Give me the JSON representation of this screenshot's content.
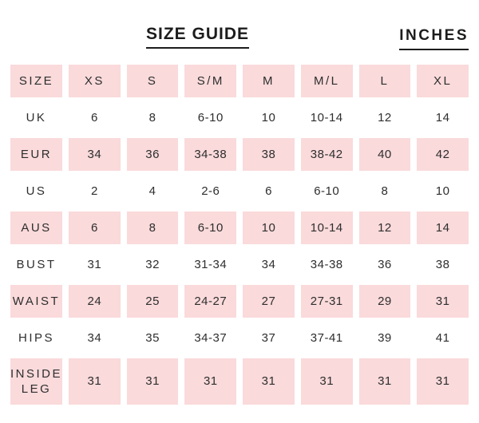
{
  "page": {
    "title": "SIZE GUIDE",
    "unit_label": "INCHES"
  },
  "colors": {
    "row_pink": "#fadadb",
    "text": "#2e2e2e",
    "heading": "#1c1c1c"
  },
  "table": {
    "header": [
      "SIZE",
      "XS",
      "S",
      "S/M",
      "M",
      "M/L",
      "L",
      "XL"
    ],
    "rows": [
      {
        "label": "UK",
        "values": [
          "6",
          "8",
          "6-10",
          "10",
          "10-14",
          "12",
          "14"
        ]
      },
      {
        "label": "EUR",
        "values": [
          "34",
          "36",
          "34-38",
          "38",
          "38-42",
          "40",
          "42"
        ]
      },
      {
        "label": "US",
        "values": [
          "2",
          "4",
          "2-6",
          "6",
          "6-10",
          "8",
          "10"
        ]
      },
      {
        "label": "AUS",
        "values": [
          "6",
          "8",
          "6-10",
          "10",
          "10-14",
          "12",
          "14"
        ]
      },
      {
        "label": "BUST",
        "values": [
          "31",
          "32",
          "31-34",
          "34",
          "34-38",
          "36",
          "38"
        ]
      },
      {
        "label": "WAIST",
        "values": [
          "24",
          "25",
          "24-27",
          "27",
          "27-31",
          "29",
          "31"
        ]
      },
      {
        "label": "HIPS",
        "values": [
          "34",
          "35",
          "34-37",
          "37",
          "37-41",
          "39",
          "41"
        ]
      },
      {
        "label": "INSIDE LEG",
        "values": [
          "31",
          "31",
          "31",
          "31",
          "31",
          "31",
          "31"
        ]
      }
    ]
  }
}
